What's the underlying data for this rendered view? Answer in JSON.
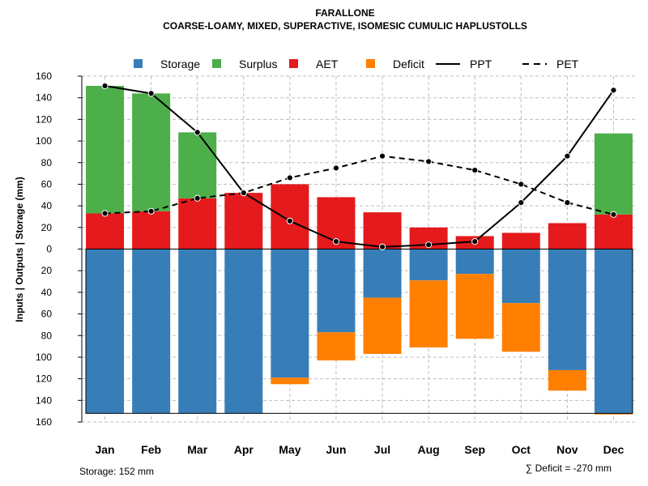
{
  "chart_data": {
    "type": "bar",
    "title": "FARALLONE",
    "subtitle": "COARSE-LOAMY, MIXED, SUPERACTIVE, ISOMESIC CUMULIC HAPLUSTOLLS",
    "ylabel": "Inputs | Outputs | Storage    (mm)",
    "categories": [
      "Jan",
      "Feb",
      "Mar",
      "Apr",
      "May",
      "Jun",
      "Jul",
      "Aug",
      "Sep",
      "Oct",
      "Nov",
      "Dec"
    ],
    "ylim": [
      -160,
      160
    ],
    "yticks": [
      160,
      140,
      120,
      100,
      80,
      60,
      40,
      20,
      0,
      -20,
      -40,
      -60,
      -80,
      -100,
      -120,
      -140,
      -160
    ],
    "ytick_labels": [
      "160",
      "140",
      "120",
      "100",
      "80",
      "60",
      "40",
      "20",
      "0",
      "20",
      "40",
      "60",
      "80",
      "100",
      "120",
      "140",
      "160"
    ],
    "grid": true,
    "legend_position": "top",
    "legend": [
      {
        "label": "Storage",
        "kind": "square",
        "color": "#377EB8"
      },
      {
        "label": "Surplus",
        "kind": "square",
        "color": "#4DAF4A"
      },
      {
        "label": "AET",
        "kind": "square",
        "color": "#E41A1C"
      },
      {
        "label": "Deficit",
        "kind": "square",
        "color": "#FF7F00"
      },
      {
        "label": "PPT",
        "kind": "solid-line",
        "color": "#000000"
      },
      {
        "label": "PET",
        "kind": "dashed-line",
        "color": "#000000"
      }
    ],
    "series": [
      {
        "name": "AET",
        "color": "#E41A1C",
        "values": [
          33,
          35,
          47,
          52,
          60,
          48,
          34,
          20,
          12,
          15,
          24,
          32
        ]
      },
      {
        "name": "Surplus",
        "color": "#4DAF4A",
        "values": [
          118,
          109,
          61,
          0,
          0,
          0,
          0,
          0,
          0,
          0,
          0,
          75
        ]
      },
      {
        "name": "Storage",
        "color": "#377EB8",
        "values": [
          152,
          152,
          152,
          152,
          119,
          77,
          45,
          29,
          23,
          50,
          112,
          152
        ]
      },
      {
        "name": "Deficit",
        "color": "#FF7F00",
        "values": [
          0,
          0,
          0,
          0,
          6,
          26,
          52,
          62,
          60,
          45,
          19,
          1
        ]
      },
      {
        "name": "PPT",
        "color": "#000000",
        "values": [
          151,
          144,
          108,
          52,
          26,
          7,
          2,
          4,
          7,
          43,
          86,
          147
        ]
      },
      {
        "name": "PET",
        "color": "#000000",
        "values": [
          33,
          35,
          47,
          52,
          66,
          75,
          86,
          81,
          73,
          60,
          43,
          32
        ]
      }
    ],
    "storage_capacity": 152,
    "storage_note": "Storage: 152 mm",
    "deficit_note": "∑ Deficit = -270 mm"
  }
}
